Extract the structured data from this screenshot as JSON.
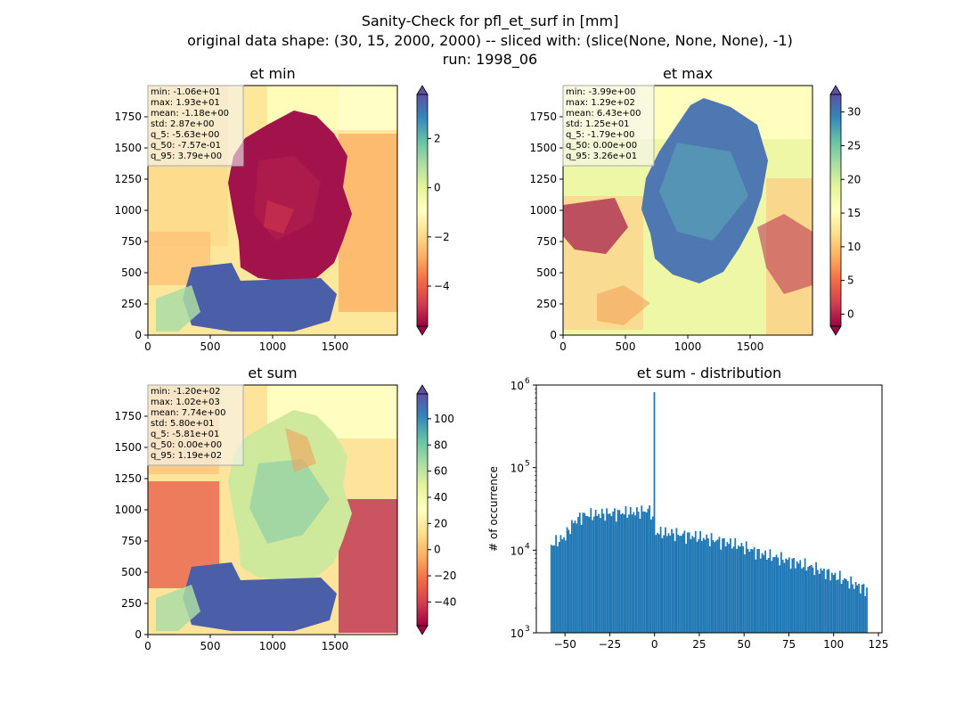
{
  "figure": {
    "title_lines": [
      "Sanity-Check for pfl_et_surf in [mm]",
      "original data shape: (30, 15, 2000, 2000) -- sliced with: (slice(None, None, None), -1)",
      "run: 1998_06"
    ]
  },
  "colors": {
    "spectral": [
      "#9e0142",
      "#d53e4f",
      "#f46d43",
      "#fdae61",
      "#fee08b",
      "#ffffbf",
      "#e6f598",
      "#abdda4",
      "#66c2a5",
      "#3288bd",
      "#5e4fa2"
    ],
    "hist_bar": "#1f77b4"
  },
  "chart_data": [
    {
      "type": "heatmap",
      "title": "et min",
      "x_ticks": [
        0,
        500,
        1000,
        1500
      ],
      "y_ticks": [
        0,
        250,
        500,
        750,
        1000,
        1250,
        1500,
        1750
      ],
      "xlim": [
        0,
        2000
      ],
      "ylim": [
        0,
        2000
      ],
      "colorbar": {
        "vmin": -5.63,
        "vmax": 3.79,
        "ticks": [
          -4,
          -2,
          0,
          2
        ],
        "extend": "both"
      },
      "stats": [
        "min: -1.06e+01",
        "max: 1.93e+01",
        "mean: -1.18e+00",
        "std: 2.87e+00",
        "q_5: -5.63e+00",
        "q_50: -7.57e-01",
        "q_95: 3.79e+00"
      ]
    },
    {
      "type": "heatmap",
      "title": "et max",
      "x_ticks": [
        0,
        500,
        1000,
        1500
      ],
      "y_ticks": [
        0,
        250,
        500,
        750,
        1000,
        1250,
        1500,
        1750
      ],
      "xlim": [
        0,
        2000
      ],
      "ylim": [
        0,
        2000
      ],
      "colorbar": {
        "vmin": -1.79,
        "vmax": 32.6,
        "ticks": [
          0,
          5,
          10,
          15,
          20,
          25,
          30
        ],
        "extend": "both"
      },
      "stats": [
        "min: -3.99e+00",
        "max: 1.29e+02",
        "mean: 6.43e+00",
        "std: 1.25e+01",
        "q_5: -1.79e+00",
        "q_50: 0.00e+00",
        "q_95: 3.26e+01"
      ]
    },
    {
      "type": "heatmap",
      "title": "et sum",
      "x_ticks": [
        0,
        500,
        1000,
        1500
      ],
      "y_ticks": [
        0,
        250,
        500,
        750,
        1000,
        1250,
        1500,
        1750
      ],
      "xlim": [
        0,
        2000
      ],
      "ylim": [
        0,
        2000
      ],
      "colorbar": {
        "vmin": -58.1,
        "vmax": 119,
        "ticks": [
          -40,
          -20,
          0,
          20,
          40,
          60,
          80,
          100
        ],
        "extend": "both"
      },
      "stats": [
        "min: -1.20e+02",
        "max: 1.02e+03",
        "mean: 7.74e+00",
        "std: 5.80e+01",
        "q_5: -5.81e+01",
        "q_50: 0.00e+00",
        "q_95: 1.19e+02"
      ]
    },
    {
      "type": "bar",
      "title": "et sum - distribution",
      "ylabel": "# of occurrence",
      "xlabel": "",
      "yscale": "log",
      "xlim": [
        -66,
        127
      ],
      "ylim": [
        1000,
        1000000
      ],
      "x_ticks": [
        -50,
        -25,
        0,
        25,
        50,
        75,
        100,
        125
      ],
      "y_ticks": [
        {
          "value": 1000,
          "base": "10",
          "exp": "3"
        },
        {
          "value": 10000,
          "base": "10",
          "exp": "4"
        },
        {
          "value": 100000,
          "base": "10",
          "exp": "5"
        },
        {
          "value": 1000000,
          "base": "10",
          "exp": "6"
        }
      ],
      "bins": {
        "x_start": -58.1,
        "x_end": 119.0,
        "count": 200
      },
      "envelope": [
        [
          -58,
          11500
        ],
        [
          -50,
          14500
        ],
        [
          -45,
          22000
        ],
        [
          -40,
          26500
        ],
        [
          -30,
          27500
        ],
        [
          -20,
          28500
        ],
        [
          -10,
          29000
        ],
        [
          -2,
          31000
        ],
        [
          0,
          16500
        ],
        [
          10,
          16000
        ],
        [
          25,
          14500
        ],
        [
          40,
          12500
        ],
        [
          50,
          11000
        ],
        [
          60,
          9000
        ],
        [
          75,
          7500
        ],
        [
          90,
          6000
        ],
        [
          100,
          5000
        ],
        [
          110,
          4000
        ],
        [
          119,
          3300
        ]
      ],
      "spike": {
        "x": 0,
        "value": 820000
      }
    }
  ]
}
